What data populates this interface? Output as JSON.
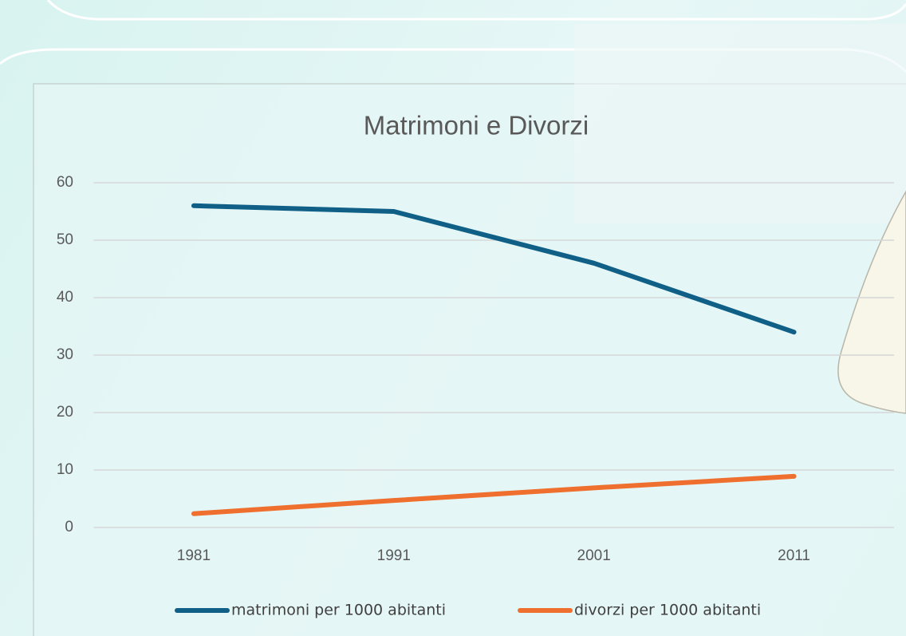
{
  "chart_data": {
    "type": "line",
    "title": "Matrimoni e Divorzi",
    "categories": [
      "1981",
      "1991",
      "2001",
      "2011"
    ],
    "series": [
      {
        "name": "matrimoni per 1000 abitanti",
        "color": "#0f5f87",
        "values": [
          56,
          55,
          46,
          34
        ]
      },
      {
        "name": "divorzi per 1000 abitanti",
        "color": "#ef6f2e",
        "values": [
          2.4,
          4.7,
          6.9,
          8.9
        ]
      }
    ],
    "ylim": [
      0,
      60
    ],
    "yticks": [
      0,
      10,
      20,
      30,
      40,
      50,
      60
    ],
    "grid": true,
    "legend": "bottom"
  }
}
